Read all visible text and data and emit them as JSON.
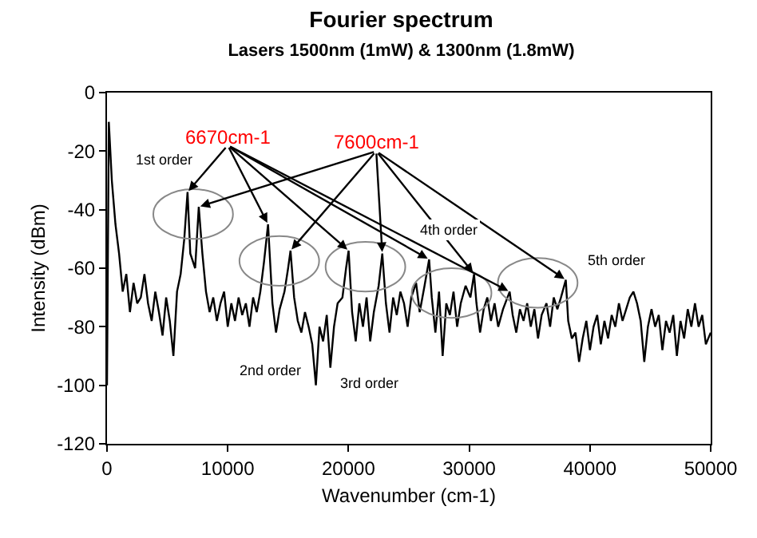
{
  "chart_data": {
    "type": "line",
    "title": "Fourier spectrum",
    "subtitle": "Lasers 1500nm (1mW) & 1300nm (1.8mW)",
    "xlabel": "Wavenumber (cm-1)",
    "ylabel": "Intensity (dBm)",
    "xlim": [
      0,
      50000
    ],
    "xticks": [
      0,
      10000,
      20000,
      30000,
      40000,
      50000
    ],
    "ylim": [
      -120,
      0
    ],
    "yticks": [
      -120,
      -100,
      -80,
      -60,
      -40,
      -20,
      0
    ],
    "grid": false,
    "marker": "none",
    "line_style": "solid",
    "series": [
      {
        "color": "#000000",
        "x": [
          0,
          150,
          400,
          700,
          1000,
          1300,
          1600,
          1900,
          2200,
          2500,
          2800,
          3100,
          3400,
          3700,
          4000,
          4300,
          4600,
          4900,
          5200,
          5500,
          5800,
          6100,
          6400,
          6670,
          6900,
          7300,
          7600,
          7900,
          8200,
          8500,
          8800,
          9100,
          9400,
          9700,
          10000,
          10300,
          10600,
          10900,
          11200,
          11500,
          11800,
          12100,
          12400,
          12700,
          13000,
          13340,
          13700,
          14000,
          14300,
          14700,
          15000,
          15200,
          15500,
          15800,
          16100,
          16400,
          16700,
          17000,
          17300,
          17600,
          17900,
          18200,
          18500,
          18800,
          19100,
          19500,
          19800,
          20010,
          20300,
          20600,
          20900,
          21200,
          21500,
          21800,
          22100,
          22500,
          22800,
          23100,
          23400,
          23700,
          24000,
          24300,
          24600,
          24900,
          25200,
          25600,
          25900,
          26300,
          26680,
          26900,
          27200,
          27500,
          27800,
          28100,
          28400,
          28700,
          29000,
          29300,
          29700,
          30100,
          30400,
          30600,
          30900,
          31200,
          31500,
          31800,
          32100,
          32400,
          32800,
          33350,
          33600,
          33900,
          34200,
          34500,
          34800,
          35100,
          35400,
          35700,
          36000,
          36400,
          36700,
          37000,
          37300,
          37600,
          38000,
          38200,
          38500,
          38800,
          39100,
          39400,
          39700,
          40000,
          40300,
          40600,
          40900,
          41200,
          41500,
          41800,
          42100,
          42400,
          42700,
          43000,
          43300,
          43600,
          43900,
          44200,
          44500,
          44800,
          45100,
          45400,
          45700,
          46000,
          46300,
          46600,
          46900,
          47200,
          47500,
          47800,
          48100,
          48400,
          48700,
          49000,
          49300,
          49600,
          50000
        ],
        "values": [
          -100,
          -10,
          -30,
          -45,
          -55,
          -68,
          -62,
          -75,
          -65,
          -72,
          -70,
          -62,
          -72,
          -78,
          -68,
          -75,
          -83,
          -70,
          -78,
          -90,
          -68,
          -62,
          -50,
          -34,
          -55,
          -60,
          -39,
          -55,
          -68,
          -75,
          -70,
          -78,
          -72,
          -68,
          -80,
          -72,
          -78,
          -70,
          -76,
          -72,
          -80,
          -70,
          -75,
          -68,
          -58,
          -45,
          -72,
          -82,
          -74,
          -68,
          -60,
          -54,
          -70,
          -78,
          -82,
          -75,
          -80,
          -86,
          -100,
          -80,
          -85,
          -76,
          -94,
          -80,
          -72,
          -70,
          -60,
          -54,
          -75,
          -85,
          -72,
          -80,
          -70,
          -85,
          -75,
          -66,
          -55,
          -72,
          -82,
          -70,
          -76,
          -68,
          -72,
          -80,
          -70,
          -65,
          -75,
          -66,
          -57,
          -70,
          -82,
          -68,
          -90,
          -72,
          -76,
          -68,
          -80,
          -72,
          -66,
          -70,
          -62,
          -72,
          -82,
          -74,
          -70,
          -78,
          -72,
          -80,
          -74,
          -68,
          -76,
          -82,
          -74,
          -78,
          -72,
          -80,
          -74,
          -84,
          -76,
          -72,
          -80,
          -70,
          -74,
          -70,
          -64,
          -78,
          -84,
          -82,
          -92,
          -84,
          -78,
          -88,
          -80,
          -76,
          -86,
          -78,
          -84,
          -76,
          -80,
          -72,
          -78,
          -74,
          -70,
          -68,
          -72,
          -78,
          -92,
          -80,
          -74,
          -80,
          -76,
          -88,
          -78,
          -82,
          -76,
          -90,
          -78,
          -84,
          -74,
          -80,
          -72,
          -80,
          -76,
          -86,
          -82
        ]
      }
    ],
    "annotations": [
      {
        "text": "6670cm-1",
        "x": 6670,
        "y": -34
      },
      {
        "text": "7600cm-1",
        "x": 7600,
        "y": -39
      },
      "1st order",
      "2nd order",
      "3rd order",
      "4th order",
      "5th order"
    ]
  }
}
